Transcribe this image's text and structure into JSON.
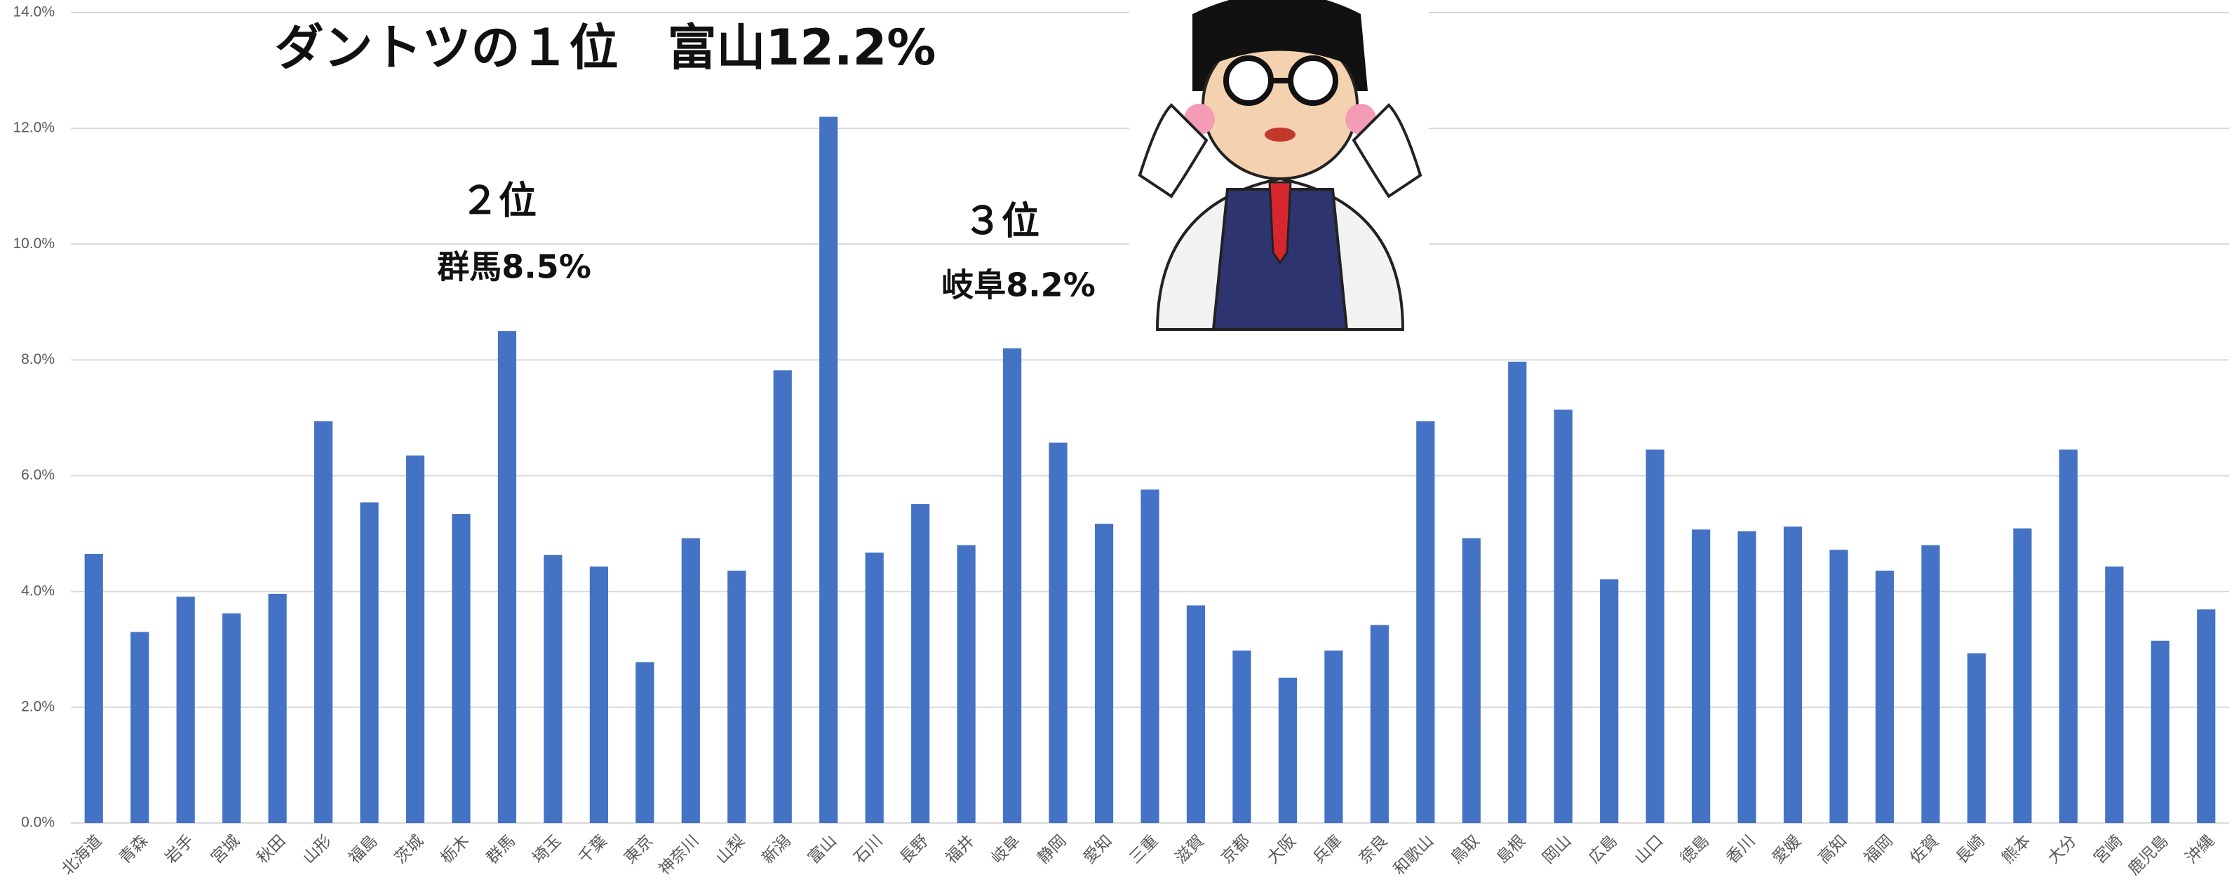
{
  "chart_data": {
    "type": "bar",
    "categories": [
      "北海道",
      "青森",
      "岩手",
      "宮城",
      "秋田",
      "山形",
      "福島",
      "茨城",
      "栃木",
      "群馬",
      "埼玉",
      "千葉",
      "東京",
      "神奈川",
      "山梨",
      "新潟",
      "富山",
      "石川",
      "長野",
      "福井",
      "岐阜",
      "静岡",
      "愛知",
      "三重",
      "滋賀",
      "京都",
      "大阪",
      "兵庫",
      "奈良",
      "和歌山",
      "鳥取",
      "島根",
      "岡山",
      "広島",
      "山口",
      "徳島",
      "香川",
      "愛媛",
      "高知",
      "福岡",
      "佐賀",
      "長崎",
      "熊本",
      "大分",
      "宮崎",
      "鹿児島",
      "沖縄"
    ],
    "values": [
      4.65,
      3.3,
      3.91,
      3.62,
      3.96,
      6.94,
      5.54,
      6.35,
      5.34,
      8.5,
      4.63,
      4.43,
      2.78,
      4.92,
      4.36,
      7.82,
      12.2,
      4.67,
      5.51,
      4.8,
      8.2,
      6.57,
      5.17,
      5.76,
      3.76,
      2.98,
      2.51,
      2.98,
      3.42,
      6.94,
      4.92,
      7.97,
      7.14,
      4.21,
      6.45,
      5.07,
      5.04,
      5.12,
      4.72,
      4.36,
      4.8,
      2.93,
      5.09,
      6.45,
      4.43,
      3.15,
      3.69
    ],
    "color": "#4472c4",
    "ylim": [
      0,
      14
    ],
    "yticks": [
      {
        "value": 0,
        "label": "0.0%"
      },
      {
        "value": 2,
        "label": "2.0%"
      },
      {
        "value": 4,
        "label": "4.0%"
      },
      {
        "value": 6,
        "label": "6.0%"
      },
      {
        "value": 8,
        "label": "8.0%"
      },
      {
        "value": 10,
        "label": "10.0%"
      },
      {
        "value": 12,
        "label": "12.0%"
      },
      {
        "value": 14,
        "label": "14.0%"
      }
    ],
    "grid": true,
    "annotations": [
      "ダントツの１位　富山12.2%",
      "２位",
      "群馬8.5%",
      "３位",
      "岐阜8.2%"
    ]
  }
}
